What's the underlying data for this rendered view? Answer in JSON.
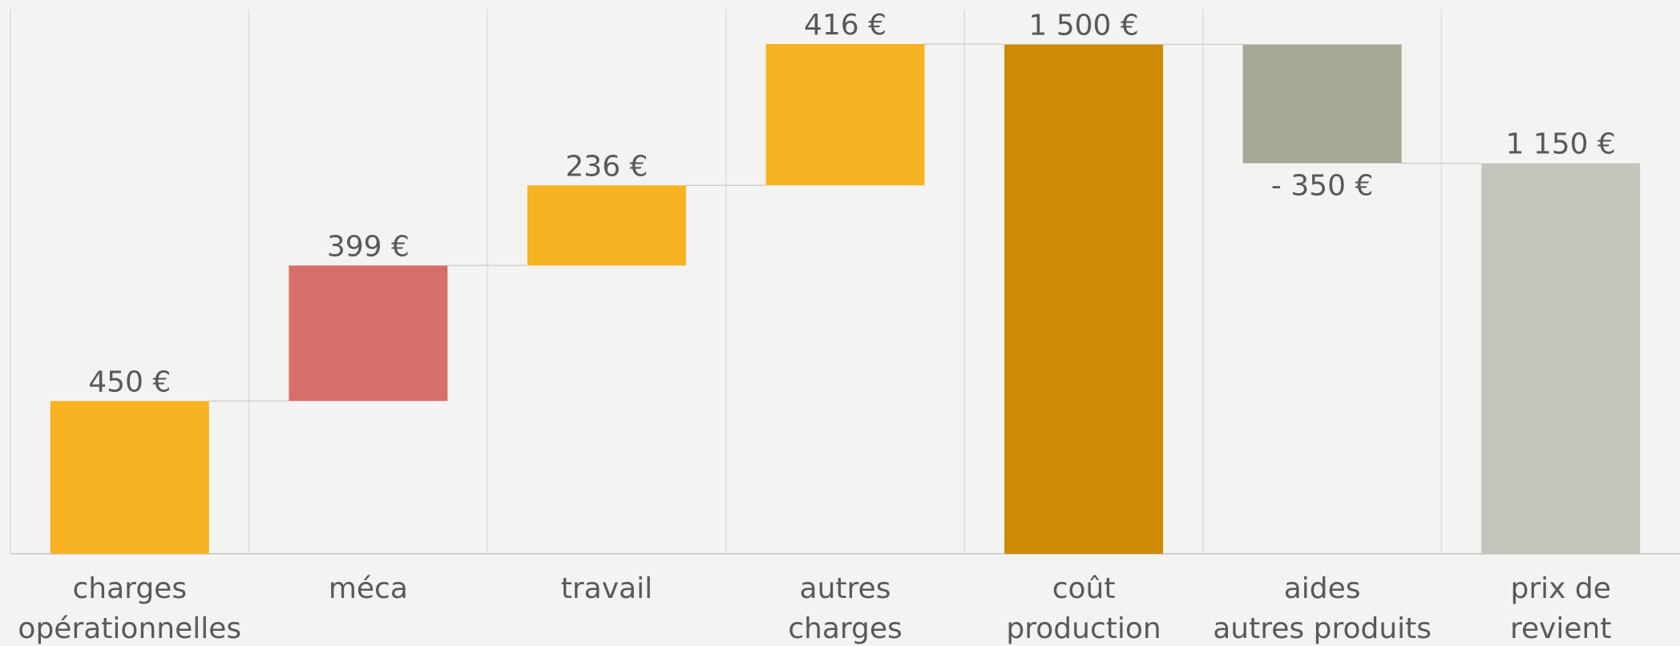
{
  "chart_data": {
    "type": "waterfall",
    "categories": [
      [
        "charges",
        "opérationnelles"
      ],
      [
        "méca"
      ],
      [
        "travail"
      ],
      [
        "autres",
        "charges"
      ],
      [
        "coût",
        "production"
      ],
      [
        "aides",
        "autres produits"
      ],
      [
        "prix de",
        "revient"
      ]
    ],
    "values": [
      450,
      399,
      236,
      416,
      1500,
      -350,
      1150
    ],
    "value_labels": [
      "450 €",
      "399 €",
      "236 €",
      "416 €",
      "1 500 €",
      "- 350 €",
      "1 150 €"
    ],
    "totals": [
      false,
      false,
      false,
      false,
      true,
      false,
      true
    ],
    "colors": [
      "#F8B323",
      "#D66F69",
      "#F8B323",
      "#F8B323",
      "#CD8B05",
      "#A6A996",
      "#C3C5BC"
    ],
    "grid": true
  }
}
